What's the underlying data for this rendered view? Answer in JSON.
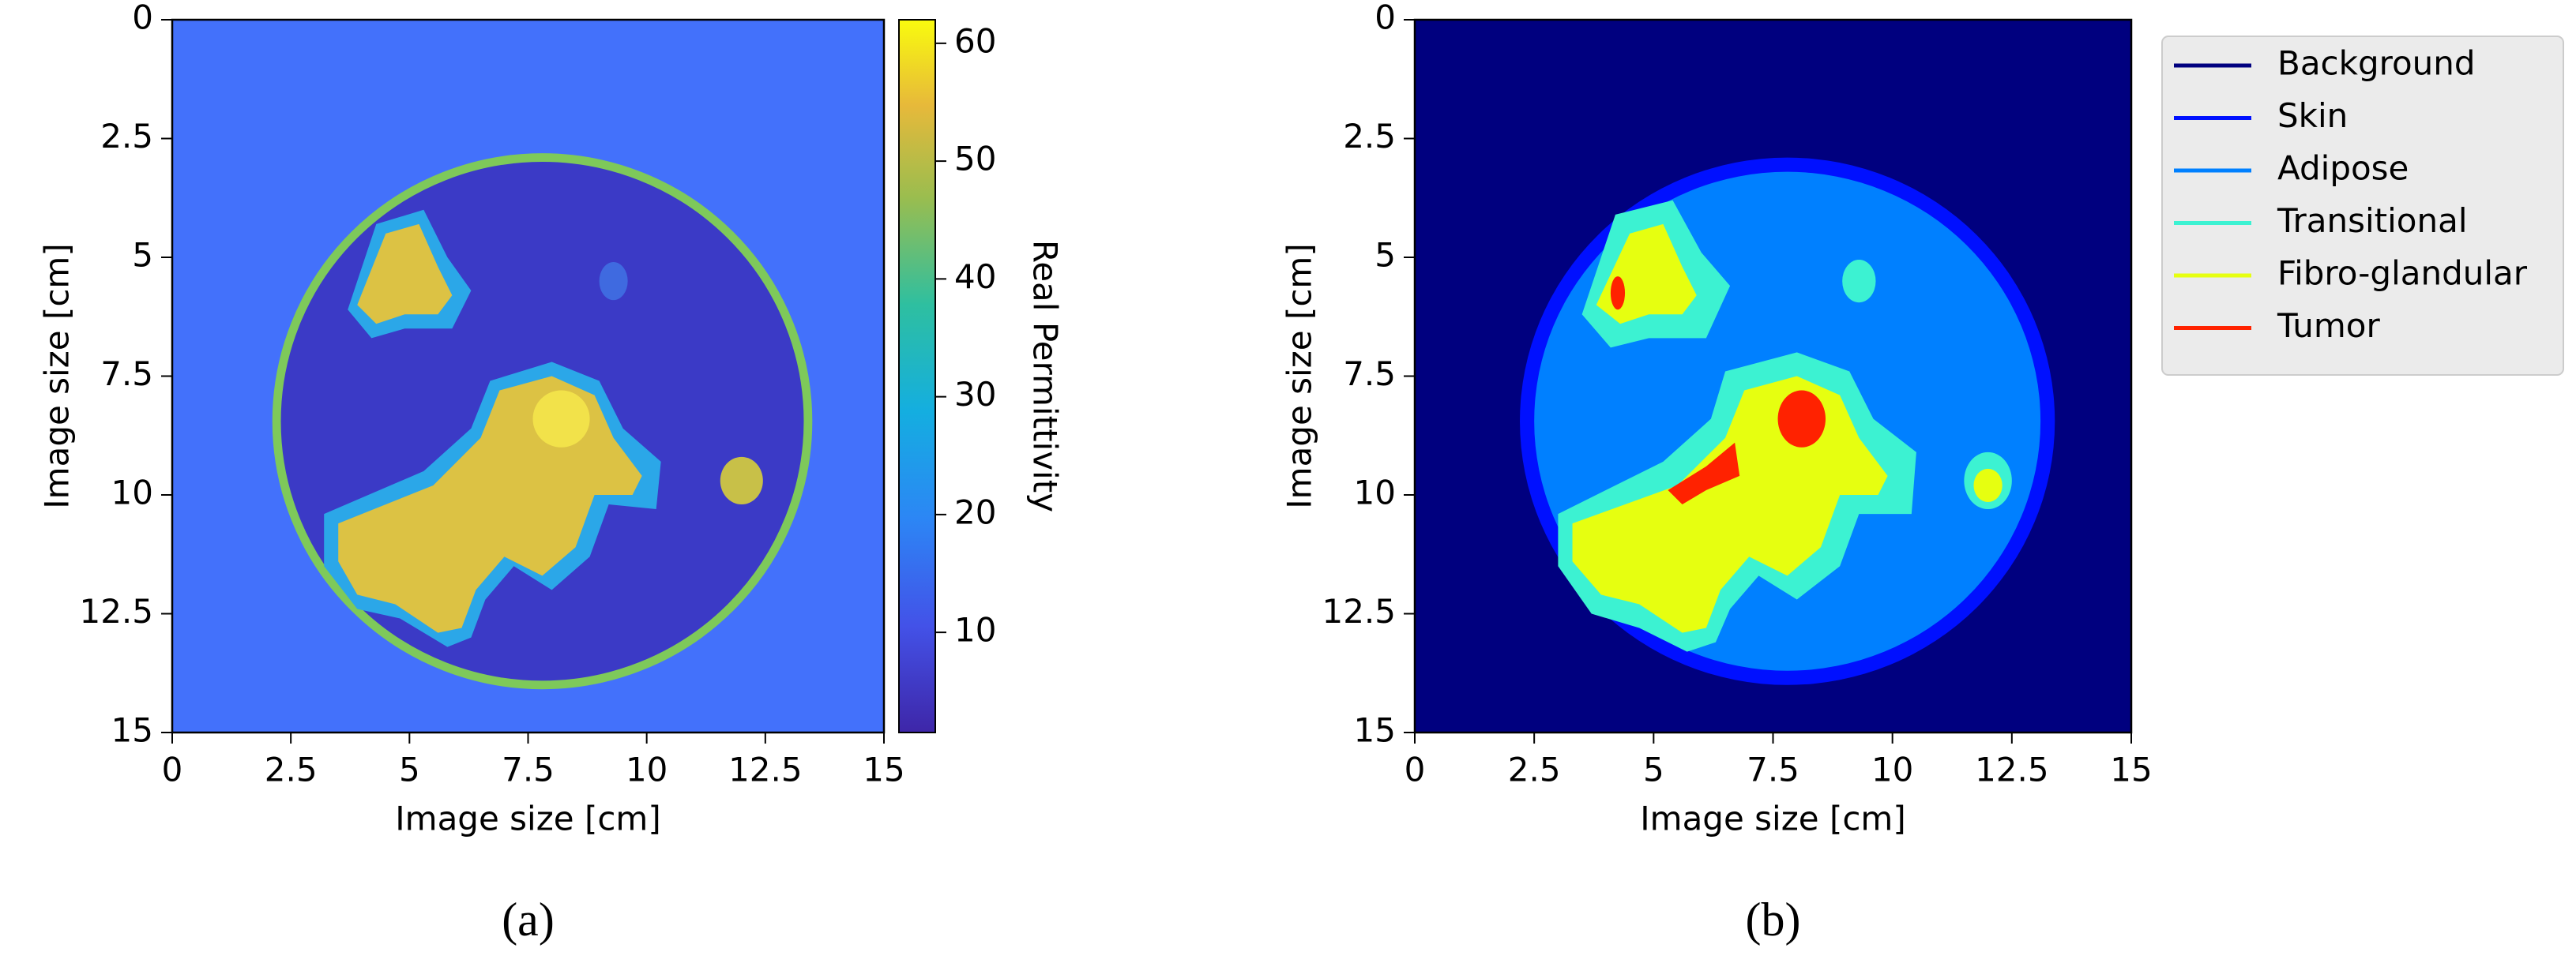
{
  "chart_data": [
    {
      "type": "heatmap",
      "xlabel": "Image size [cm]",
      "ylabel": "Image size [cm]",
      "xlim": [
        0,
        15
      ],
      "ylim": [
        15,
        0
      ],
      "xticks": [
        0,
        2.5,
        5,
        7.5,
        10,
        12.5,
        15
      ],
      "yticks": [
        0,
        2.5,
        5,
        7.5,
        10,
        12.5,
        15
      ],
      "colorbar": {
        "label": "Real Permittivity",
        "lim": [
          1.5,
          62
        ],
        "ticks": [
          10,
          20,
          30,
          40,
          50,
          60
        ]
      },
      "caption": "(a)"
    },
    {
      "type": "heatmap",
      "xlabel": "Image size [cm]",
      "ylabel": "Image size [cm]",
      "xlim": [
        0,
        15
      ],
      "ylim": [
        15,
        0
      ],
      "xticks": [
        0,
        2.5,
        5,
        7.5,
        10,
        12.5,
        15
      ],
      "yticks": [
        0,
        2.5,
        5,
        7.5,
        10,
        12.5,
        15
      ],
      "series": [
        {
          "name": "Background",
          "color": "#00007f"
        },
        {
          "name": "Skin",
          "color": "#0010ff"
        },
        {
          "name": "Adipose",
          "color": "#0080ff"
        },
        {
          "name": "Transitional",
          "color": "#3cf2d2"
        },
        {
          "name": "Fibro-glandular",
          "color": "#e6ff10"
        },
        {
          "name": "Tumor",
          "color": "#ff2200"
        }
      ],
      "legend": "upper right outside",
      "caption": "(b)"
    }
  ]
}
